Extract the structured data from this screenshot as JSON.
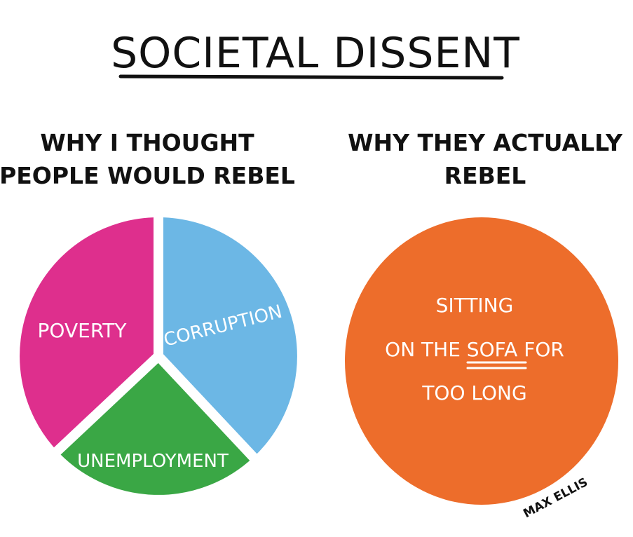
{
  "title": "SOCIETAL DISSENT",
  "credit": "MAX ELLIS",
  "colors": {
    "ink": "#111111",
    "magenta": "#de2f8d",
    "blue": "#6cb7e5",
    "green": "#3aa745",
    "orange": "#ed6d2b",
    "label": "#ffffff"
  },
  "chart_data": [
    {
      "type": "pie",
      "title_lines": [
        "WHY I THOUGHT",
        "PEOPLE WOULD REBEL"
      ],
      "slices": [
        {
          "label": "POVERTY",
          "value": 37,
          "color": "#de2f8d"
        },
        {
          "label": "CORRUPTION",
          "value": 38,
          "color": "#6cb7e5"
        },
        {
          "label": "UNEMPLOYMENT",
          "value": 25,
          "color": "#3aa745"
        }
      ]
    },
    {
      "type": "pie",
      "title_lines": [
        "WHY THEY ACTUALLY",
        "REBEL"
      ],
      "slices": [
        {
          "label_lines": [
            "SITTING",
            "ON THE SOFA FOR",
            "TOO LONG"
          ],
          "value": 100,
          "color": "#ed6d2b"
        }
      ]
    }
  ]
}
